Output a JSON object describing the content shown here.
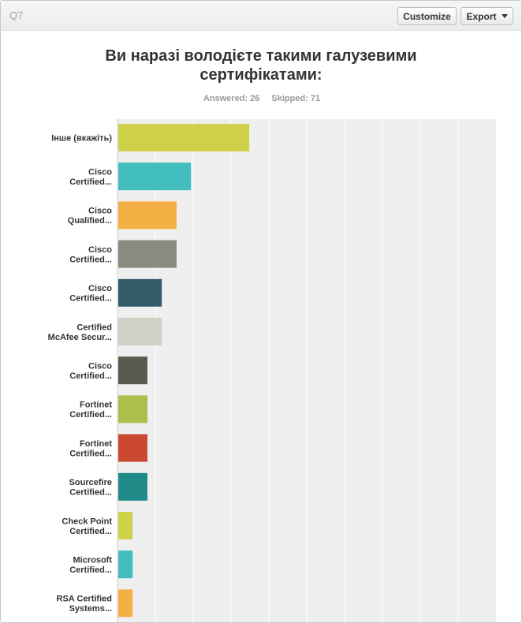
{
  "question": {
    "number": "Q7",
    "title": "Ви наразі володієте такими галузевими сертифікатами:",
    "answered_label": "Answered: 26",
    "skipped_label": "Skipped: 71"
  },
  "toolbar": {
    "customize_label": "Customize",
    "export_label": "Export"
  },
  "chart_data": {
    "type": "bar",
    "orientation": "horizontal",
    "categories": [
      [
        "Інше (вкажіть)"
      ],
      [
        "Cisco",
        "Certified..."
      ],
      [
        "Cisco",
        "Qualified..."
      ],
      [
        "Cisco",
        "Certified..."
      ],
      [
        "Cisco",
        "Certified..."
      ],
      [
        "Certified",
        "McAfee Secur..."
      ],
      [
        "Cisco",
        "Certified..."
      ],
      [
        "Fortinet",
        "Certified..."
      ],
      [
        "Fortinet",
        "Certified..."
      ],
      [
        "Sourcefire",
        "Certified..."
      ],
      [
        "Check Point",
        "Certified..."
      ],
      [
        "Microsoft",
        "Certified..."
      ],
      [
        "RSA Certified",
        "Systems..."
      ]
    ],
    "values": [
      34.6,
      19.2,
      15.4,
      15.4,
      11.5,
      11.5,
      7.7,
      7.7,
      7.7,
      7.7,
      3.8,
      3.8,
      3.8
    ],
    "colors": [
      "#d0d14a",
      "#42bdbd",
      "#f5b045",
      "#8a8b7e",
      "#355b6b",
      "#d1d0c4",
      "#5b5a4e",
      "#adbe4c",
      "#c9482f",
      "#1f8a87",
      "#d0d14a",
      "#42bdbd",
      "#f5b045"
    ],
    "xlim": [
      0,
      100
    ],
    "grid": true,
    "grid_step": 10
  }
}
